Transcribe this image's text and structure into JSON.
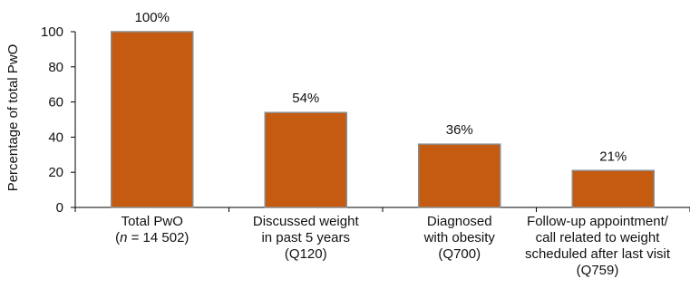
{
  "chart_data": {
    "type": "bar",
    "ylabel": "Percentage of total PwO",
    "ylim": [
      0,
      100
    ],
    "yticks": [
      0,
      20,
      40,
      60,
      80,
      100
    ],
    "grid": false,
    "categories": [
      {
        "lines": [
          [
            "Total PwO"
          ],
          [
            {
              "text": "(",
              "italic": false
            },
            {
              "text": "n",
              "italic": true
            },
            {
              "text": " = 14 502)",
              "italic": false
            }
          ]
        ],
        "value": 100,
        "data_label": "100%"
      },
      {
        "lines": [
          [
            "Discussed weight"
          ],
          [
            "in past 5 years"
          ],
          [
            "(Q120)"
          ]
        ],
        "value": 54,
        "data_label": "54%"
      },
      {
        "lines": [
          [
            "Diagnosed"
          ],
          [
            "with obesity"
          ],
          [
            "(Q700)"
          ]
        ],
        "value": 36,
        "data_label": "36%"
      },
      {
        "lines": [
          [
            "Follow-up appointment/"
          ],
          [
            "call related to weight"
          ],
          [
            "scheduled after last visit"
          ],
          [
            "(Q759)"
          ]
        ],
        "value": 21,
        "data_label": "21%"
      }
    ],
    "colors": {
      "bar_fill": "#c55a11",
      "bar_stroke": "#8c8c8c",
      "axis": "#000000"
    }
  }
}
